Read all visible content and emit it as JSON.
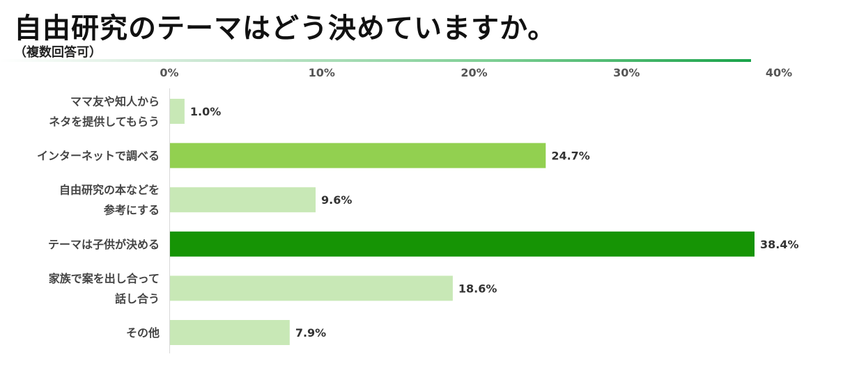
{
  "title": "自由研究のテーマはどう決めていますか。",
  "subtitle": "（複数回答可）",
  "colors": {
    "bar_light": "#c8e8b6",
    "bar_mid": "#92d050",
    "bar_dark": "#169405",
    "axis_line": "#d9d9d9",
    "header_rule_end": "#1aa34a"
  },
  "chart_data": {
    "type": "bar",
    "orientation": "horizontal",
    "xlim": [
      0,
      40
    ],
    "x_ticks": [
      "0%",
      "10%",
      "20%",
      "30%",
      "40%"
    ],
    "categories": [
      [
        "ママ友や知人から",
        "ネタを提供してもらう"
      ],
      [
        "インターネットで調べる"
      ],
      [
        "自由研究の本などを",
        "参考にする"
      ],
      [
        "テーマは子供が決める"
      ],
      [
        "家族で案を出し合って",
        "話し合う"
      ],
      [
        "その他"
      ]
    ],
    "values": [
      1.0,
      24.7,
      9.6,
      38.4,
      18.6,
      7.9
    ],
    "value_labels": [
      "1.0%",
      "24.7%",
      "9.6%",
      "38.4%",
      "18.6%",
      "7.9%"
    ],
    "bar_shades": [
      "light",
      "mid",
      "light",
      "dark",
      "light",
      "light"
    ],
    "grid": false,
    "legend": "none"
  }
}
